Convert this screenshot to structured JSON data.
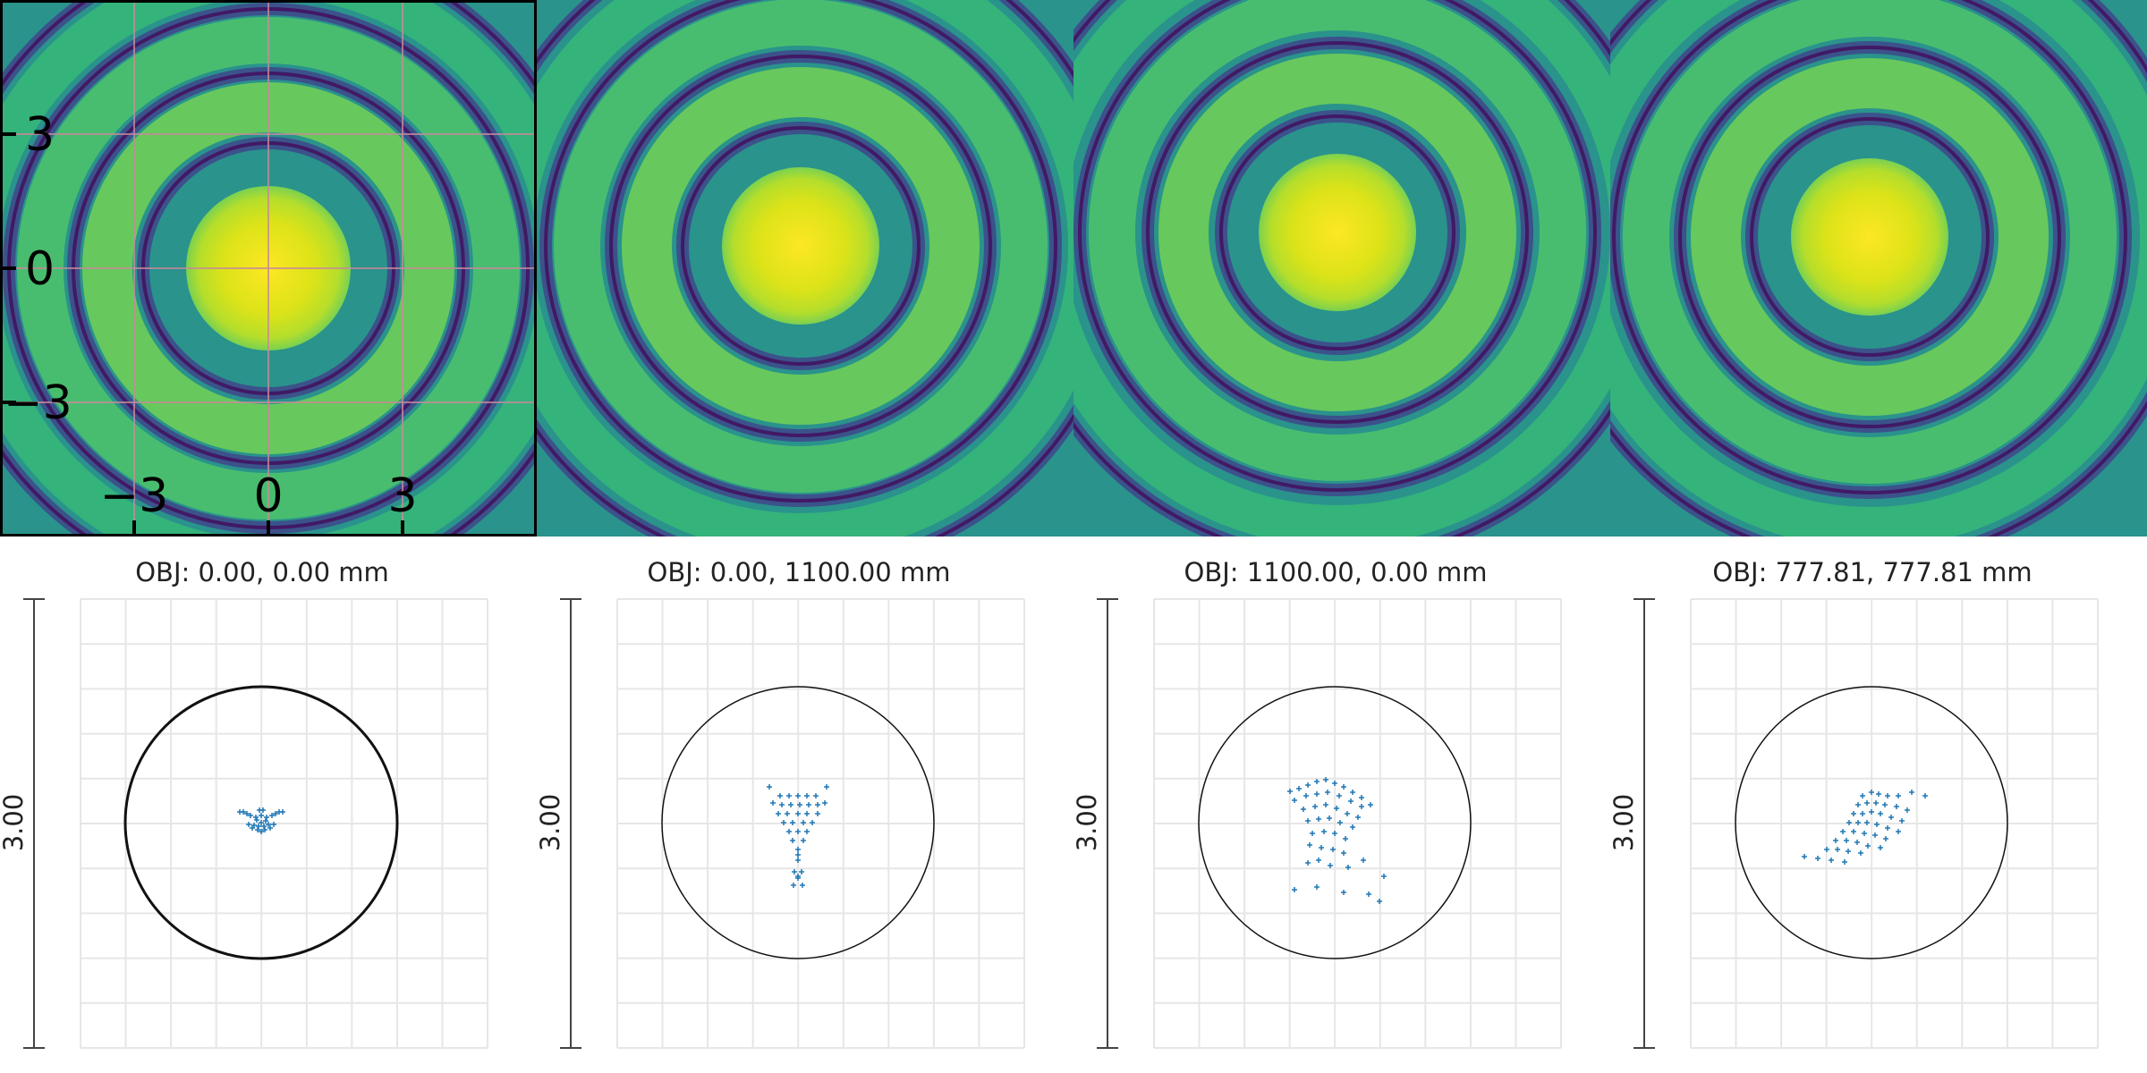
{
  "chart_data": [
    {
      "type": "heatmap",
      "description_role": "psf-map",
      "colormap": "viridis",
      "ring_count": 4,
      "axes_shown": true,
      "grid": true,
      "xticks": [
        "−3",
        "0",
        "3"
      ],
      "yticks": [
        "3",
        "0",
        "−3"
      ],
      "xlim": [
        -6,
        6
      ],
      "ylim": [
        -6,
        6
      ]
    },
    {
      "type": "heatmap",
      "colormap": "viridis",
      "ring_count": 4,
      "axes_shown": false
    },
    {
      "type": "heatmap",
      "colormap": "viridis",
      "ring_count": 4,
      "axes_shown": false
    },
    {
      "type": "heatmap",
      "colormap": "viridis",
      "ring_count": 4,
      "axes_shown": false
    },
    {
      "type": "scatter",
      "title": "OBJ: 0.00, 0.00 mm",
      "ylabel": "3.00",
      "grid": true,
      "reference_circle": true,
      "points": [
        [
          0.0,
          0.0
        ],
        [
          0.05,
          0.02
        ],
        [
          -0.05,
          0.03
        ],
        [
          0.08,
          -0.02
        ],
        [
          -0.08,
          -0.03
        ],
        [
          0.12,
          0.08
        ],
        [
          -0.12,
          0.08
        ],
        [
          0.16,
          0.1
        ],
        [
          -0.16,
          0.1
        ],
        [
          0.2,
          0.12
        ],
        [
          -0.2,
          0.12
        ],
        [
          0.24,
          0.12
        ],
        [
          -0.24,
          0.12
        ],
        [
          0.04,
          -0.08
        ],
        [
          -0.04,
          -0.08
        ],
        [
          0.0,
          -0.1
        ],
        [
          0.1,
          -0.06
        ],
        [
          -0.1,
          -0.06
        ],
        [
          0.06,
          0.06
        ],
        [
          -0.06,
          0.06
        ],
        [
          0.02,
          0.14
        ],
        [
          -0.02,
          0.14
        ],
        [
          0.14,
          -0.02
        ],
        [
          -0.14,
          -0.02
        ],
        [
          0.0,
          0.08
        ],
        [
          0.03,
          -0.04
        ],
        [
          -0.03,
          -0.04
        ]
      ]
    },
    {
      "type": "scatter",
      "title": "OBJ: 0.00, 1100.00 mm",
      "ylabel": "3.00",
      "grid": true,
      "reference_circle": true,
      "points": [
        [
          -0.32,
          0.4
        ],
        [
          -0.2,
          0.3
        ],
        [
          -0.1,
          0.3
        ],
        [
          0.0,
          0.3
        ],
        [
          0.1,
          0.3
        ],
        [
          0.2,
          0.3
        ],
        [
          0.32,
          0.4
        ],
        [
          -0.28,
          0.22
        ],
        [
          -0.18,
          0.2
        ],
        [
          -0.08,
          0.2
        ],
        [
          0.02,
          0.2
        ],
        [
          0.12,
          0.2
        ],
        [
          0.22,
          0.2
        ],
        [
          0.3,
          0.22
        ],
        [
          -0.22,
          0.1
        ],
        [
          -0.12,
          0.1
        ],
        [
          0.0,
          0.1
        ],
        [
          0.1,
          0.1
        ],
        [
          0.22,
          0.1
        ],
        [
          -0.16,
          0.0
        ],
        [
          -0.06,
          0.0
        ],
        [
          0.06,
          0.0
        ],
        [
          0.16,
          0.0
        ],
        [
          -0.1,
          -0.1
        ],
        [
          0.0,
          -0.1
        ],
        [
          0.1,
          -0.1
        ],
        [
          -0.06,
          -0.2
        ],
        [
          0.06,
          -0.2
        ],
        [
          0.0,
          -0.3
        ],
        [
          0.0,
          -0.36
        ],
        [
          0.0,
          -0.42
        ],
        [
          -0.04,
          -0.55
        ],
        [
          0.04,
          -0.55
        ],
        [
          0.0,
          -0.6
        ],
        [
          -0.05,
          -0.7
        ],
        [
          0.05,
          -0.7
        ],
        [
          0.0,
          -0.62
        ]
      ]
    },
    {
      "type": "scatter",
      "title": "OBJ: 1100.00, 0.00 mm",
      "ylabel": "3.00",
      "grid": true,
      "reference_circle": true,
      "points": [
        [
          -0.5,
          0.35
        ],
        [
          -0.4,
          0.38
        ],
        [
          -0.3,
          0.42
        ],
        [
          -0.2,
          0.46
        ],
        [
          -0.1,
          0.48
        ],
        [
          0.0,
          0.44
        ],
        [
          0.1,
          0.4
        ],
        [
          0.2,
          0.34
        ],
        [
          0.3,
          0.28
        ],
        [
          0.4,
          0.2
        ],
        [
          -0.45,
          0.25
        ],
        [
          -0.32,
          0.3
        ],
        [
          -0.2,
          0.32
        ],
        [
          -0.08,
          0.34
        ],
        [
          0.05,
          0.3
        ],
        [
          0.18,
          0.24
        ],
        [
          0.3,
          0.18
        ],
        [
          -0.35,
          0.15
        ],
        [
          -0.22,
          0.18
        ],
        [
          -0.1,
          0.2
        ],
        [
          0.02,
          0.16
        ],
        [
          0.14,
          0.1
        ],
        [
          0.26,
          0.06
        ],
        [
          -0.3,
          0.02
        ],
        [
          -0.18,
          0.04
        ],
        [
          -0.06,
          0.05
        ],
        [
          0.06,
          0.0
        ],
        [
          0.2,
          -0.05
        ],
        [
          -0.25,
          -0.12
        ],
        [
          -0.12,
          -0.1
        ],
        [
          0.0,
          -0.12
        ],
        [
          0.12,
          -0.18
        ],
        [
          -0.28,
          -0.25
        ],
        [
          -0.15,
          -0.28
        ],
        [
          -0.02,
          -0.3
        ],
        [
          0.1,
          -0.34
        ],
        [
          -0.3,
          -0.45
        ],
        [
          -0.18,
          -0.42
        ],
        [
          -0.05,
          -0.48
        ],
        [
          0.15,
          -0.5
        ],
        [
          0.32,
          -0.42
        ],
        [
          -0.45,
          -0.75
        ],
        [
          -0.2,
          -0.72
        ],
        [
          0.1,
          -0.78
        ],
        [
          0.38,
          -0.8
        ],
        [
          0.55,
          -0.6
        ],
        [
          0.5,
          -0.88
        ]
      ]
    },
    {
      "type": "scatter",
      "title": "OBJ: 777.81, 777.81 mm",
      "ylabel": "3.00",
      "grid": true,
      "reference_circle": true,
      "points": [
        [
          -0.1,
          0.3
        ],
        [
          0.0,
          0.34
        ],
        [
          0.08,
          0.32
        ],
        [
          0.18,
          0.3
        ],
        [
          0.3,
          0.3
        ],
        [
          0.45,
          0.34
        ],
        [
          0.6,
          0.3
        ],
        [
          -0.15,
          0.2
        ],
        [
          -0.05,
          0.22
        ],
        [
          0.05,
          0.22
        ],
        [
          0.15,
          0.2
        ],
        [
          0.28,
          0.18
        ],
        [
          0.4,
          0.14
        ],
        [
          -0.2,
          0.1
        ],
        [
          -0.1,
          0.1
        ],
        [
          0.0,
          0.12
        ],
        [
          0.1,
          0.1
        ],
        [
          0.22,
          0.06
        ],
        [
          0.34,
          0.02
        ],
        [
          -0.25,
          0.0
        ],
        [
          -0.15,
          0.0
        ],
        [
          -0.05,
          0.0
        ],
        [
          0.06,
          -0.02
        ],
        [
          0.18,
          -0.06
        ],
        [
          0.3,
          -0.1
        ],
        [
          -0.32,
          -0.1
        ],
        [
          -0.2,
          -0.1
        ],
        [
          -0.08,
          -0.12
        ],
        [
          0.04,
          -0.14
        ],
        [
          0.16,
          -0.18
        ],
        [
          -0.4,
          -0.2
        ],
        [
          -0.28,
          -0.2
        ],
        [
          -0.16,
          -0.22
        ],
        [
          -0.04,
          -0.26
        ],
        [
          0.1,
          -0.28
        ],
        [
          -0.5,
          -0.3
        ],
        [
          -0.38,
          -0.3
        ],
        [
          -0.26,
          -0.32
        ],
        [
          -0.12,
          -0.34
        ],
        [
          -0.75,
          -0.38
        ],
        [
          -0.6,
          -0.4
        ],
        [
          -0.45,
          -0.42
        ],
        [
          -0.3,
          -0.44
        ]
      ]
    }
  ]
}
